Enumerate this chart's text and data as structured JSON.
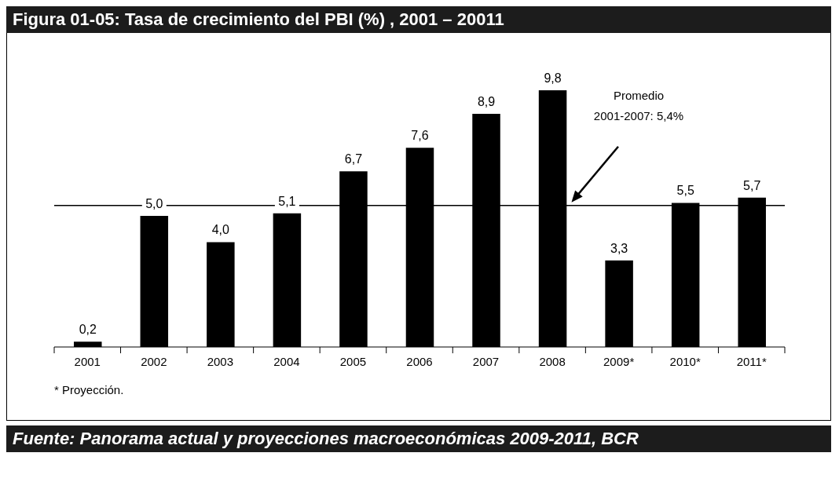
{
  "chart_data": {
    "type": "bar",
    "title": "Figura 01-05: Tasa de crecimiento del PBI (%) ,  2001 – 20011",
    "categories": [
      "2001",
      "2002",
      "2003",
      "2004",
      "2005",
      "2006",
      "2007",
      "2008",
      "2009*",
      "2010*",
      "2011*"
    ],
    "values": [
      0.2,
      5.0,
      4.0,
      5.1,
      6.7,
      7.6,
      8.9,
      9.8,
      3.3,
      5.5,
      5.7
    ],
    "value_labels": [
      "0,2",
      "5,0",
      "4,0",
      "5,1",
      "6,7",
      "7,6",
      "8,9",
      "9,8",
      "3,3",
      "5,5",
      "5,7"
    ],
    "color": "#000000",
    "tick_labels": "x",
    "ref_lines": [
      {
        "axis": "y",
        "value": 5.4,
        "label": "Promedio\n2001-2007: 5,4%",
        "color": "#000000"
      }
    ],
    "annotations": [
      "* Proyección.",
      "Fuente: Panorama actual y proyecciones macroeconómicas 2009-2011, BCR"
    ]
  }
}
